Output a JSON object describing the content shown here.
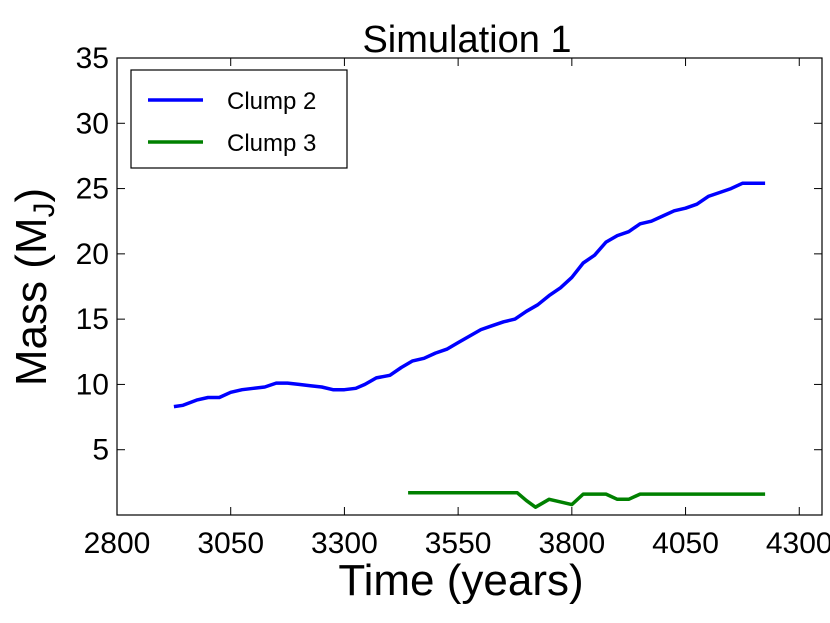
{
  "chart_data": {
    "type": "line",
    "title": "Simulation 1",
    "xlabel": "Time (years)",
    "ylabel_main": "Mass (M",
    "ylabel_sub": "J",
    "ylabel_close": ")",
    "xlim": [
      2800,
      4350
    ],
    "ylim": [
      0,
      35
    ],
    "xticks": [
      2800,
      3050,
      3300,
      3550,
      3800,
      4050,
      4300
    ],
    "yticks": [
      5,
      10,
      15,
      20,
      25,
      30,
      35
    ],
    "grid": false,
    "legend_position": "top-left",
    "series": [
      {
        "name": "Clump 2",
        "color": "#0000ff",
        "x": [
          2925,
          2945,
          2975,
          3000,
          3025,
          3050,
          3075,
          3100,
          3125,
          3150,
          3175,
          3200,
          3225,
          3250,
          3275,
          3300,
          3325,
          3345,
          3370,
          3400,
          3425,
          3450,
          3475,
          3500,
          3525,
          3550,
          3575,
          3600,
          3625,
          3650,
          3675,
          3700,
          3725,
          3750,
          3775,
          3800,
          3825,
          3850,
          3875,
          3900,
          3925,
          3950,
          3975,
          4000,
          4025,
          4050,
          4075,
          4100,
          4125,
          4150,
          4175,
          4200,
          4225
        ],
        "y": [
          8.3,
          8.4,
          8.8,
          9.0,
          9.0,
          9.4,
          9.6,
          9.7,
          9.8,
          10.1,
          10.1,
          10.0,
          9.9,
          9.8,
          9.6,
          9.6,
          9.7,
          10.0,
          10.5,
          10.7,
          11.3,
          11.8,
          12.0,
          12.4,
          12.7,
          13.2,
          13.7,
          14.2,
          14.5,
          14.8,
          15.0,
          15.6,
          16.1,
          16.8,
          17.4,
          18.2,
          19.3,
          19.9,
          20.9,
          21.4,
          21.7,
          22.3,
          22.5,
          22.9,
          23.3,
          23.5,
          23.8,
          24.4,
          24.7,
          25.0,
          25.4,
          25.4,
          25.4
        ]
      },
      {
        "name": "Clump 3",
        "color": "#008000",
        "x": [
          3440,
          3500,
          3550,
          3600,
          3650,
          3680,
          3700,
          3720,
          3750,
          3775,
          3800,
          3825,
          3850,
          3875,
          3900,
          3925,
          3950,
          4000,
          4050,
          4100,
          4150,
          4200,
          4225
        ],
        "y": [
          1.7,
          1.7,
          1.7,
          1.7,
          1.7,
          1.7,
          1.1,
          0.6,
          1.2,
          1.0,
          0.8,
          1.6,
          1.6,
          1.6,
          1.2,
          1.2,
          1.6,
          1.6,
          1.6,
          1.6,
          1.6,
          1.6,
          1.6
        ]
      }
    ]
  }
}
